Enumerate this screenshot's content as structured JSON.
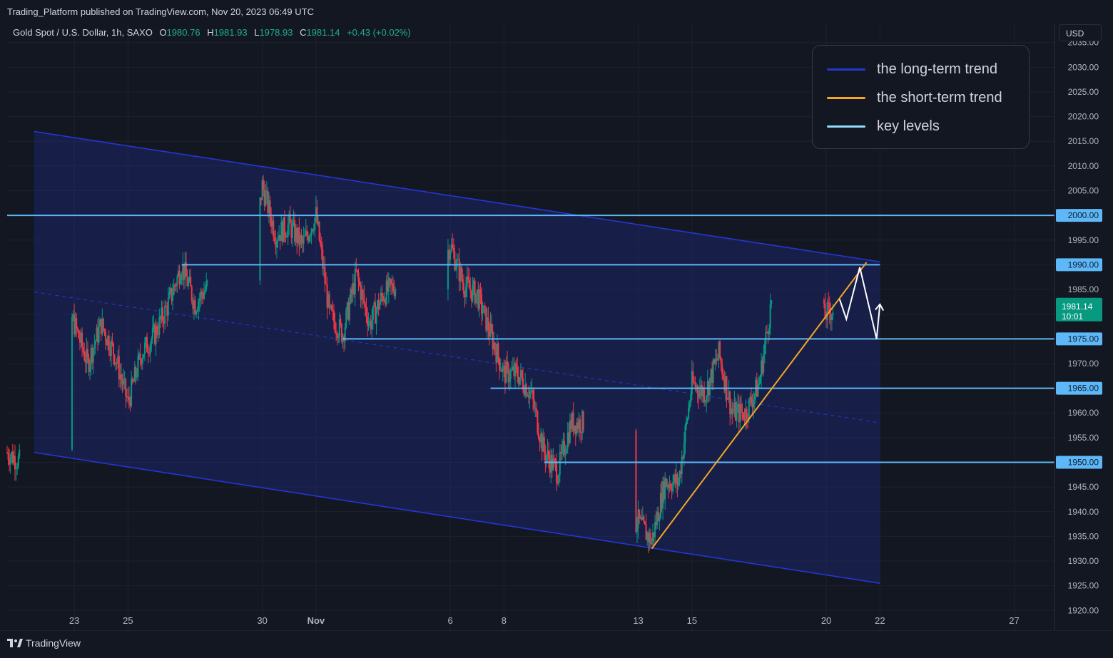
{
  "header": {
    "published_text": "Trading_Platform published on TradingView.com, Nov 20, 2023 06:49 UTC",
    "symbol": "Gold Spot / U.S. Dollar, 1h, SAXO",
    "open_label": "O",
    "open_value": "1980.76",
    "high_label": "H",
    "high_value": "1981.93",
    "low_label": "L",
    "low_value": "1978.93",
    "close_label": "C",
    "close_value": "1981.14",
    "change": "+0.43 (+0.02%)"
  },
  "currency_button": "USD",
  "legend": {
    "items": [
      {
        "label": "the long-term trend",
        "color": "#2436d4"
      },
      {
        "label": "the short-term trend",
        "color": "#f5a623"
      },
      {
        "label": "key levels",
        "color": "#8fdcff"
      }
    ]
  },
  "footer": {
    "brand": "TradingView"
  },
  "chart_data": {
    "type": "candlestick",
    "title": "Gold Spot / U.S. Dollar, 1h, SAXO",
    "x_domain": [
      "2023-10-20T12:00",
      "2023-11-28T12:00"
    ],
    "y_range": [
      1916,
      2039
    ],
    "x_ticks": [
      {
        "label": "23",
        "date": "2023-10-23"
      },
      {
        "label": "25",
        "date": "2023-10-25"
      },
      {
        "label": "30",
        "date": "2023-10-30"
      },
      {
        "label": "Nov",
        "date": "2023-11-01"
      },
      {
        "label": "6",
        "date": "2023-11-06"
      },
      {
        "label": "8",
        "date": "2023-11-08"
      },
      {
        "label": "13",
        "date": "2023-11-13"
      },
      {
        "label": "15",
        "date": "2023-11-15"
      },
      {
        "label": "20",
        "date": "2023-11-20"
      },
      {
        "label": "22",
        "date": "2023-11-22"
      },
      {
        "label": "27",
        "date": "2023-11-27"
      }
    ],
    "y_ticks": [
      "1920.00",
      "1925.00",
      "1930.00",
      "1935.00",
      "1940.00",
      "1945.00",
      "1950.00",
      "1955.00",
      "1960.00",
      "1965.00",
      "1970.00",
      "1975.00",
      "1980.00",
      "1985.00",
      "1990.00",
      "1995.00",
      "2000.00",
      "2005.00",
      "2010.00",
      "2015.00",
      "2020.00",
      "2025.00",
      "2030.00",
      "2035.00"
    ],
    "key_levels": [
      {
        "value": 2000,
        "label": "2000.00",
        "from": "2023-10-20T12:00",
        "to": "2023-11-28T12:00"
      },
      {
        "value": 1990,
        "label": "1990.00",
        "from": "2023-10-27T00:00",
        "to": "2023-11-22T00:00"
      },
      {
        "value": 1975,
        "label": "1975.00",
        "from": "2023-11-02T00:00",
        "to": "2023-11-28T12:00"
      },
      {
        "value": 1965,
        "label": "1965.00",
        "from": "2023-11-07T12:00",
        "to": "2023-11-28T12:00"
      },
      {
        "value": 1950,
        "label": "1950.00",
        "from": "2023-11-09T12:00",
        "to": "2023-11-28T12:00"
      }
    ],
    "last_price": {
      "value": 1981.14,
      "label": "1981.14",
      "countdown": "10:01",
      "color": "#089981"
    },
    "channel": {
      "upper": [
        [
          "2023-10-21T12:00",
          2017
        ],
        [
          "2023-11-22T00:00",
          1990.6
        ]
      ],
      "lower": [
        [
          "2023-10-21T12:00",
          1952
        ],
        [
          "2023-11-22T00:00",
          1925.5
        ]
      ],
      "mid": [
        [
          "2023-10-21T12:00",
          1984.5
        ],
        [
          "2023-11-22T00:00",
          1958
        ]
      ],
      "color": "#2436d4"
    },
    "short_term_trend": [
      [
        "2023-11-13T12:00",
        1932.5
      ],
      [
        "2023-11-21T12:00",
        1990.5
      ]
    ],
    "projection": [
      [
        "2023-11-20T12:00",
        1983
      ],
      [
        "2023-11-21T00:00",
        1979
      ],
      [
        "2023-11-21T00:00",
        1979
      ],
      [
        "2023-11-21T12:00",
        1989.5
      ],
      [
        "2023-11-21T12:00",
        1989.5
      ],
      [
        "2023-11-21T12:00",
        1989.5
      ],
      [
        "2023-11-21T12:00",
        1989.5
      ],
      [
        "2023-11-21T12:00",
        1989.5
      ]
    ],
    "projection_path": [
      [
        "2023-11-20T12:00",
        1983
      ],
      [
        "2023-11-20T18:00",
        1979
      ],
      [
        "2023-11-21T06:00",
        1989.5
      ],
      [
        "2023-11-21T21:00",
        1975
      ],
      [
        "2023-11-22T00:00",
        1982
      ]
    ],
    "price_anchors": [
      [
        "2023-10-20T12:00",
        1952
      ],
      [
        "2023-10-21T12:00",
        1948
      ],
      [
        "2023-10-22T00:00",
        1975
      ],
      [
        "2023-10-22T12:00",
        1985
      ],
      [
        "2023-10-23T00:00",
        1978
      ],
      [
        "2023-10-23T12:00",
        1970
      ],
      [
        "2023-10-24T00:00",
        1978
      ],
      [
        "2023-10-24T12:00",
        1972
      ],
      [
        "2023-10-25T00:00",
        1962
      ],
      [
        "2023-10-25T12:00",
        1972
      ],
      [
        "2023-10-26T00:00",
        1976
      ],
      [
        "2023-10-26T12:00",
        1982
      ],
      [
        "2023-10-27T00:00",
        1990
      ],
      [
        "2023-10-27T12:00",
        1982
      ],
      [
        "2023-10-28T00:00",
        1986
      ],
      [
        "2023-10-28T12:00",
        1982
      ],
      [
        "2023-10-29T12:00",
        1984
      ],
      [
        "2023-10-30T00:00",
        2006
      ],
      [
        "2023-10-30T12:00",
        1996
      ],
      [
        "2023-10-31T00:00",
        1998
      ],
      [
        "2023-10-31T12:00",
        1994
      ],
      [
        "2023-11-01T00:00",
        2000
      ],
      [
        "2023-11-01T12:00",
        1980
      ],
      [
        "2023-11-02T00:00",
        1976
      ],
      [
        "2023-11-02T12:00",
        1988
      ],
      [
        "2023-11-03T00:00",
        1978
      ],
      [
        "2023-11-03T12:00",
        1984
      ],
      [
        "2023-11-04T00:00",
        1986
      ],
      [
        "2023-11-05T00:00",
        1984
      ],
      [
        "2023-11-05T12:00",
        1988
      ],
      [
        "2023-11-06T00:00",
        1994
      ],
      [
        "2023-11-06T12:00",
        1986
      ],
      [
        "2023-11-07T00:00",
        1984
      ],
      [
        "2023-11-07T12:00",
        1976
      ],
      [
        "2023-11-08T00:00",
        1968
      ],
      [
        "2023-11-08T12:00",
        1968
      ],
      [
        "2023-11-09T00:00",
        1964
      ],
      [
        "2023-11-09T12:00",
        1952
      ],
      [
        "2023-11-10T00:00",
        1948
      ],
      [
        "2023-11-10T12:00",
        1958
      ],
      [
        "2023-11-11T00:00",
        1958
      ],
      [
        "2023-11-12T00:00",
        1948
      ],
      [
        "2023-11-12T12:00",
        1936
      ],
      [
        "2023-11-13T00:00",
        1938
      ],
      [
        "2023-11-13T12:00",
        1934
      ],
      [
        "2023-11-14T00:00",
        1946
      ],
      [
        "2023-11-14T12:00",
        1946
      ],
      [
        "2023-11-15T00:00",
        1966
      ],
      [
        "2023-11-15T12:00",
        1964
      ],
      [
        "2023-11-16T00:00",
        1972
      ],
      [
        "2023-11-16T12:00",
        1960
      ],
      [
        "2023-11-17T00:00",
        1960
      ],
      [
        "2023-11-17T12:00",
        1966
      ],
      [
        "2023-11-18T00:00",
        1984
      ],
      [
        "2023-11-18T12:00",
        1984
      ],
      [
        "2023-11-19T00:00",
        1986
      ],
      [
        "2023-11-19T12:00",
        1986
      ],
      [
        "2023-11-19T18:00",
        1979
      ],
      [
        "2023-11-20T06:00",
        1981
      ]
    ]
  }
}
